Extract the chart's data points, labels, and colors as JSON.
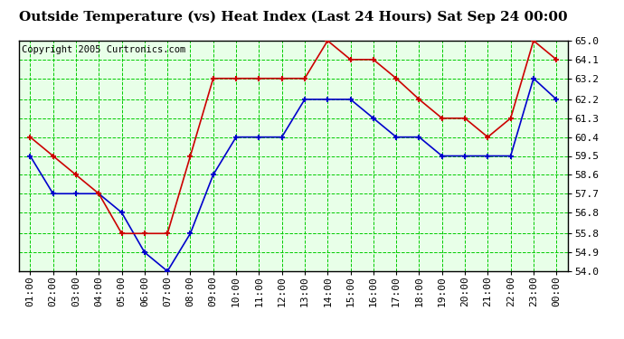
{
  "title": "Outside Temperature (vs) Heat Index (Last 24 Hours) Sat Sep 24 00:00",
  "copyright": "Copyright 2005 Curtronics.com",
  "x_labels": [
    "01:00",
    "02:00",
    "03:00",
    "04:00",
    "05:00",
    "06:00",
    "07:00",
    "08:00",
    "09:00",
    "10:00",
    "11:00",
    "12:00",
    "13:00",
    "14:00",
    "15:00",
    "16:00",
    "17:00",
    "18:00",
    "19:00",
    "20:00",
    "21:00",
    "22:00",
    "23:00",
    "00:00"
  ],
  "blue_data": [
    59.5,
    57.7,
    57.7,
    57.7,
    56.8,
    54.9,
    54.0,
    55.8,
    58.6,
    60.4,
    60.4,
    60.4,
    62.2,
    62.2,
    62.2,
    61.3,
    60.4,
    60.4,
    59.5,
    59.5,
    59.5,
    59.5,
    63.2,
    62.2
  ],
  "red_data": [
    60.4,
    59.5,
    58.6,
    57.7,
    55.8,
    55.8,
    55.8,
    59.5,
    63.2,
    63.2,
    63.2,
    63.2,
    63.2,
    65.0,
    64.1,
    64.1,
    63.2,
    62.2,
    61.3,
    61.3,
    60.4,
    61.3,
    65.0,
    64.1
  ],
  "ylim_min": 54.0,
  "ylim_max": 65.0,
  "yticks": [
    54.0,
    54.9,
    55.8,
    56.8,
    57.7,
    58.6,
    59.5,
    60.4,
    61.3,
    62.2,
    63.2,
    64.1,
    65.0
  ],
  "blue_color": "#0000cc",
  "red_color": "#cc0000",
  "grid_color": "#00cc00",
  "bg_color": "#ffffff",
  "plot_bg_color": "#e8ffe8",
  "title_fontsize": 11,
  "copyright_fontsize": 7.5,
  "tick_fontsize": 8
}
